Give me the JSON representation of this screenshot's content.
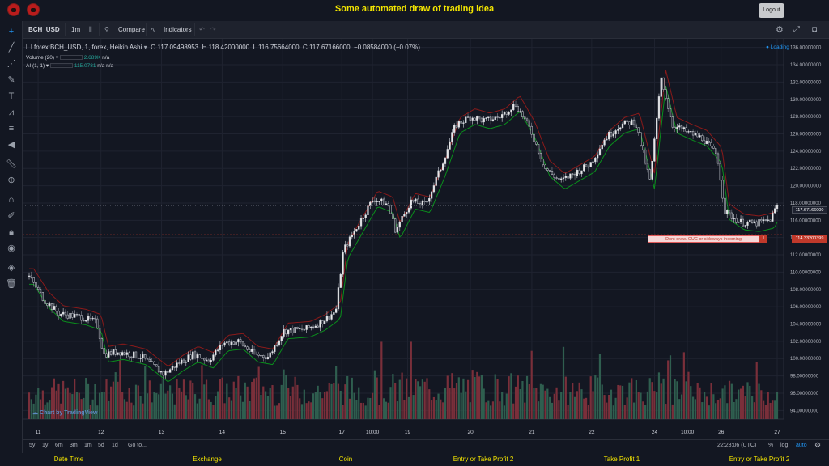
{
  "header": {
    "title": "Some automated draw of trading idea",
    "logout_label": "Logout"
  },
  "toolbar": {
    "symbol": "BCH_USD",
    "interval": "1m",
    "compare_label": "Compare",
    "indicators_label": "Indicators"
  },
  "legend": {
    "main_symbol": "forex:BCH_USD, 1, forex, Heikin Ashi",
    "open": "O 117.09498953",
    "high": "H 118.42000000",
    "low": "L 116.75664000",
    "close": "C 117.67166000",
    "change": "−0.08584000 (−0.07%)",
    "volume_label": "Volume (20)",
    "volume_value": "2.689K",
    "volume_na": "n/a",
    "ai_label": "AI (1, 1)",
    "ai_value": "115.0781",
    "ai_na1": "n/a",
    "ai_na2": "n/a",
    "loading": "● Loading"
  },
  "annotation": {
    "text": "Dont draw. CUC or sideways incoming",
    "badge": "1",
    "price_tag": "114.33200399"
  },
  "watermark": "Chart by TradingView",
  "price_axis": {
    "current": "117.67166000"
  },
  "timeframes": [
    "5y",
    "1y",
    "6m",
    "3m",
    "1m",
    "5d",
    "1d"
  ],
  "goto_label": "Go to...",
  "status": {
    "time": "22:28:06 (UTC)",
    "percent": "%",
    "log": "log",
    "auto": "auto"
  },
  "footer": {
    "labels": [
      "Date Time",
      "Exchange",
      "Coin",
      "Entry or Take Profit 2",
      "Take Profit 1",
      "Entry or Take Profit 2"
    ]
  },
  "colors": {
    "up": "#26a69a",
    "down": "#ef5350",
    "vol_up": "#2f5e4f",
    "vol_down": "#7a2f3a",
    "accent": "#2196f3",
    "yellow": "#f4e600"
  },
  "chart_data": {
    "type": "candlestick",
    "title": "forex:BCH_USD, 1, forex, Heikin Ashi",
    "ylim": [
      93,
      137
    ],
    "yticks": [
      94,
      96,
      98,
      100,
      102,
      104,
      106,
      108,
      110,
      112,
      114,
      116,
      118,
      120,
      122,
      124,
      126,
      128,
      130,
      132,
      134,
      136
    ],
    "xticks": [
      {
        "label": "11",
        "pos": 0.012
      },
      {
        "label": "12",
        "pos": 0.096
      },
      {
        "label": "13",
        "pos": 0.177
      },
      {
        "label": "14",
        "pos": 0.258
      },
      {
        "label": "15",
        "pos": 0.339
      },
      {
        "label": "17",
        "pos": 0.418
      },
      {
        "label": "10:00",
        "pos": 0.459
      },
      {
        "label": "19",
        "pos": 0.506
      },
      {
        "label": "20",
        "pos": 0.59
      },
      {
        "label": "21",
        "pos": 0.672
      },
      {
        "label": "22",
        "pos": 0.752
      },
      {
        "label": "24",
        "pos": 0.836
      },
      {
        "label": "10:00",
        "pos": 0.88
      },
      {
        "label": "26",
        "pos": 0.925
      },
      {
        "label": "27",
        "pos": 1.0
      }
    ],
    "price_path": [
      [
        0,
        109.5
      ],
      [
        0.02,
        106.8
      ],
      [
        0.04,
        105.2
      ],
      [
        0.07,
        104.8
      ],
      [
        0.09,
        104.2
      ],
      [
        0.1,
        100.5
      ],
      [
        0.12,
        100.8
      ],
      [
        0.15,
        100.2
      ],
      [
        0.18,
        98.2
      ],
      [
        0.2,
        99.5
      ],
      [
        0.22,
        100.5
      ],
      [
        0.24,
        99.8
      ],
      [
        0.26,
        101.8
      ],
      [
        0.28,
        102.0
      ],
      [
        0.3,
        100.5
      ],
      [
        0.32,
        100.2
      ],
      [
        0.34,
        103.2
      ],
      [
        0.37,
        103.4
      ],
      [
        0.39,
        104.2
      ],
      [
        0.41,
        105.5
      ],
      [
        0.42,
        112.5
      ],
      [
        0.44,
        115.5
      ],
      [
        0.46,
        118.5
      ],
      [
        0.48,
        117.8
      ],
      [
        0.49,
        114.8
      ],
      [
        0.51,
        118.2
      ],
      [
        0.53,
        117.8
      ],
      [
        0.55,
        122.0
      ],
      [
        0.57,
        127.0
      ],
      [
        0.59,
        128.0
      ],
      [
        0.61,
        127.5
      ],
      [
        0.63,
        128.0
      ],
      [
        0.65,
        129.5
      ],
      [
        0.67,
        126.5
      ],
      [
        0.69,
        122.0
      ],
      [
        0.71,
        120.5
      ],
      [
        0.73,
        121.5
      ],
      [
        0.75,
        122.5
      ],
      [
        0.77,
        125.5
      ],
      [
        0.79,
        127.0
      ],
      [
        0.81,
        127.5
      ],
      [
        0.83,
        120.5
      ],
      [
        0.845,
        132.5
      ],
      [
        0.86,
        127.0
      ],
      [
        0.88,
        126.2
      ],
      [
        0.9,
        125.5
      ],
      [
        0.92,
        123.5
      ],
      [
        0.93,
        117.0
      ],
      [
        0.95,
        115.8
      ],
      [
        0.97,
        115.6
      ],
      [
        0.99,
        116.0
      ],
      [
        1.0,
        117.7
      ]
    ],
    "volume_path": [
      [
        0,
        0.55
      ],
      [
        0.1,
        0.6
      ],
      [
        0.2,
        0.55
      ],
      [
        0.3,
        0.65
      ],
      [
        0.4,
        0.6
      ],
      [
        0.5,
        0.7
      ],
      [
        0.6,
        0.75
      ],
      [
        0.7,
        0.6
      ],
      [
        0.8,
        0.65
      ],
      [
        0.9,
        0.5
      ],
      [
        1.0,
        0.55
      ]
    ],
    "horizontal_line": 114.332,
    "current_price": 117.67166
  }
}
